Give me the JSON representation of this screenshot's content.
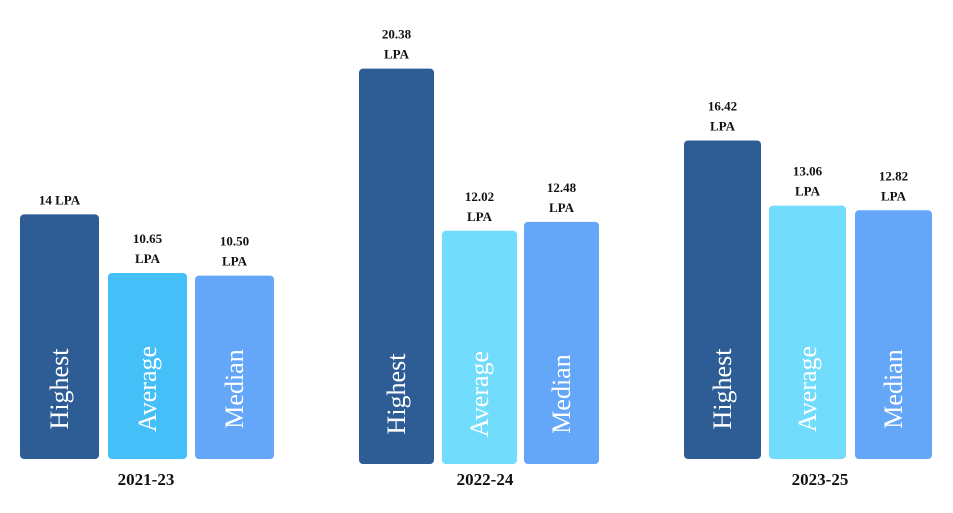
{
  "chart_data": {
    "type": "bar",
    "title": "",
    "xlabel": "",
    "ylabel": "",
    "unit": "LPA",
    "colors": {
      "Highest": "#2e5d96",
      "Average_2021_23": "#45bff7",
      "Average": "#72dcfc",
      "Median": "#64a6f8"
    },
    "groups": [
      {
        "label": "2021-23",
        "bars": [
          {
            "name": "Highest",
            "value": 14,
            "value_label": [
              "14 LPA"
            ]
          },
          {
            "name": "Average",
            "value": 10.65,
            "value_label": [
              "10.65",
              "LPA"
            ]
          },
          {
            "name": "Median",
            "value": 10.5,
            "value_label": [
              "10.50",
              "LPA"
            ]
          }
        ]
      },
      {
        "label": "2022-24",
        "bars": [
          {
            "name": "Highest",
            "value": 20.38,
            "value_label": [
              "20.38",
              "LPA"
            ]
          },
          {
            "name": "Average",
            "value": 12.02,
            "value_label": [
              "12.02",
              "LPA"
            ]
          },
          {
            "name": "Median",
            "value": 12.48,
            "value_label": [
              "12.48",
              "LPA"
            ]
          }
        ]
      },
      {
        "label": "2023-25",
        "bars": [
          {
            "name": "Highest",
            "value": 16.42,
            "value_label": [
              "16.42",
              "LPA"
            ]
          },
          {
            "name": "Average",
            "value": 13.06,
            "value_label": [
              "13.06",
              "LPA"
            ]
          },
          {
            "name": "Median",
            "value": 12.82,
            "value_label": [
              "12.82",
              "LPA"
            ]
          }
        ]
      }
    ]
  }
}
